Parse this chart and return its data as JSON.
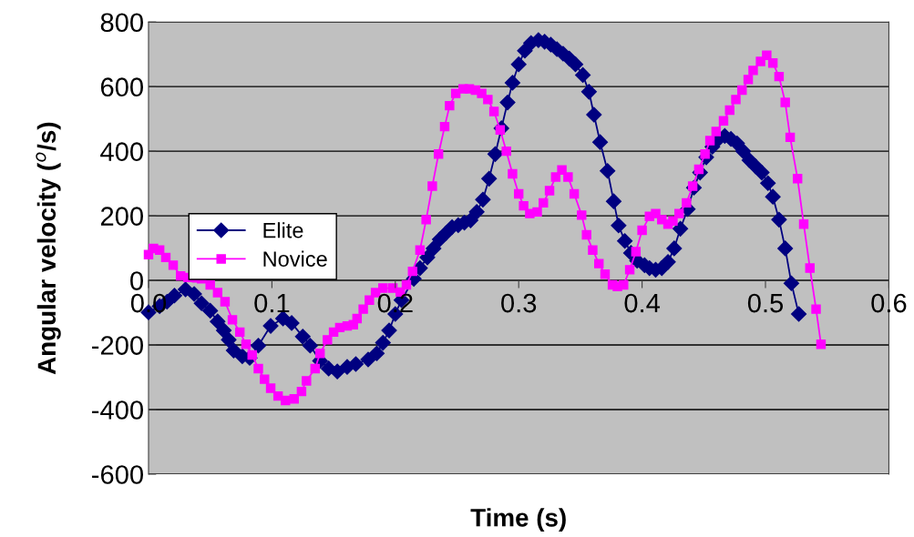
{
  "chart_data": {
    "type": "line",
    "xlabel": "Time (s)",
    "ylabel": "Angular velocity ($^{o}$/s)",
    "xlim": [
      0,
      0.6
    ],
    "xticks": [
      {
        "value": 0,
        "label": "0.0"
      },
      0.1,
      0.2,
      0.3,
      0.4,
      0.5,
      0.6
    ],
    "ylim": [
      -600,
      800
    ],
    "yticks": [
      -600,
      -400,
      -200,
      0,
      200,
      400,
      600,
      800
    ],
    "grid": "y",
    "legend": "left",
    "line_style": "solid",
    "series": [
      {
        "name": "Elite",
        "color": "#000080",
        "marker": "diamond",
        "x": [
          0.0,
          0.009,
          0.015,
          0.021,
          0.03,
          0.037,
          0.043,
          0.05,
          0.056,
          0.061,
          0.065,
          0.069,
          0.076,
          0.082,
          0.089,
          0.099,
          0.109,
          0.116,
          0.125,
          0.131,
          0.139,
          0.146,
          0.153,
          0.161,
          0.168,
          0.178,
          0.185,
          0.19,
          0.195,
          0.2,
          0.205,
          0.215,
          0.22,
          0.226,
          0.231,
          0.236,
          0.241,
          0.246,
          0.251,
          0.256,
          0.261,
          0.266,
          0.271,
          0.276,
          0.281,
          0.286,
          0.291,
          0.295,
          0.3,
          0.305,
          0.31,
          0.316,
          0.321,
          0.326,
          0.331,
          0.336,
          0.341,
          0.346,
          0.352,
          0.357,
          0.361,
          0.366,
          0.372,
          0.377,
          0.381,
          0.386,
          0.391,
          0.396,
          0.402,
          0.406,
          0.411,
          0.416,
          0.421,
          0.426,
          0.431,
          0.437,
          0.442,
          0.447,
          0.452,
          0.457,
          0.462,
          0.467,
          0.472,
          0.477,
          0.482,
          0.487,
          0.492,
          0.497,
          0.502,
          0.506,
          0.511,
          0.516,
          0.521,
          0.527
        ],
        "values": [
          -99,
          -80,
          -66,
          -47,
          -28,
          -42,
          -71,
          -94,
          -127,
          -155,
          -184,
          -217,
          -235,
          -240,
          -202,
          -141,
          -118,
          -132,
          -174,
          -202,
          -249,
          -273,
          -282,
          -268,
          -259,
          -245,
          -226,
          -193,
          -155,
          -104,
          -61,
          5,
          38,
          71,
          99,
          127,
          146,
          165,
          171,
          179,
          186,
          212,
          250,
          315,
          391,
          471,
          551,
          612,
          669,
          711,
          735,
          744,
          739,
          730,
          716,
          702,
          687,
          669,
          636,
          584,
          513,
          428,
          339,
          245,
          170,
          122,
          85,
          61,
          47,
          38,
          33,
          38,
          57,
          99,
          160,
          221,
          287,
          334,
          381,
          414,
          438,
          447,
          438,
          424,
          400,
          372,
          353,
          334,
          301,
          259,
          188,
          99,
          -9,
          -104
        ]
      },
      {
        "name": "Novice",
        "color": "#ff00ff",
        "marker": "square",
        "x": [
          0.0,
          0.004,
          0.009,
          0.014,
          0.02,
          0.026,
          0.032,
          0.039,
          0.043,
          0.05,
          0.056,
          0.062,
          0.068,
          0.074,
          0.079,
          0.084,
          0.089,
          0.094,
          0.099,
          0.105,
          0.111,
          0.118,
          0.124,
          0.128,
          0.135,
          0.139,
          0.145,
          0.15,
          0.155,
          0.161,
          0.166,
          0.169,
          0.174,
          0.179,
          0.184,
          0.19,
          0.198,
          0.204,
          0.209,
          0.214,
          0.22,
          0.225,
          0.23,
          0.235,
          0.24,
          0.244,
          0.249,
          0.255,
          0.26,
          0.265,
          0.27,
          0.275,
          0.28,
          0.285,
          0.29,
          0.295,
          0.3,
          0.304,
          0.309,
          0.315,
          0.32,
          0.325,
          0.33,
          0.335,
          0.34,
          0.345,
          0.351,
          0.355,
          0.36,
          0.365,
          0.37,
          0.376,
          0.38,
          0.385,
          0.39,
          0.395,
          0.4,
          0.406,
          0.411,
          0.416,
          0.421,
          0.425,
          0.43,
          0.436,
          0.441,
          0.446,
          0.451,
          0.455,
          0.46,
          0.466,
          0.471,
          0.476,
          0.481,
          0.486,
          0.49,
          0.496,
          0.501,
          0.506,
          0.511,
          0.516,
          0.52,
          0.526,
          0.531,
          0.536,
          0.541,
          0.545
        ],
        "values": [
          80,
          99,
          94,
          71,
          47,
          14,
          9,
          8,
          5,
          -14,
          -38,
          -66,
          -122,
          -160,
          -198,
          -231,
          -273,
          -306,
          -334,
          -358,
          -372,
          -367,
          -344,
          -311,
          -273,
          -226,
          -184,
          -160,
          -146,
          -141,
          -137,
          -118,
          -89,
          -61,
          -38,
          -24,
          -24,
          -36,
          -14,
          28,
          94,
          188,
          292,
          391,
          476,
          541,
          579,
          593,
          593,
          589,
          579,
          560,
          523,
          466,
          400,
          330,
          268,
          231,
          207,
          212,
          240,
          278,
          320,
          342,
          320,
          268,
          202,
          141,
          94,
          52,
          19,
          -14,
          -19,
          -14,
          33,
          89,
          155,
          198,
          207,
          188,
          174,
          184,
          207,
          240,
          292,
          344,
          391,
          433,
          461,
          494,
          527,
          560,
          589,
          622,
          650,
          678,
          697,
          673,
          631,
          551,
          443,
          315,
          174,
          38,
          -89,
          -198
        ]
      }
    ]
  }
}
